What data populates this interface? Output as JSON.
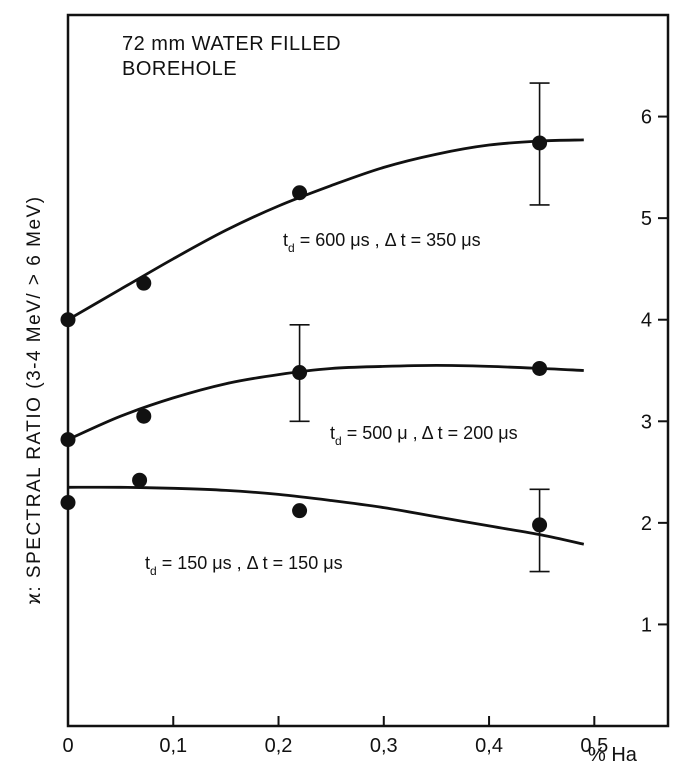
{
  "chart_data": {
    "type": "scatter",
    "xlabel": "% Ha",
    "ylabel": "ϰ: SPECTRAL RATIO (3-4 MeV/ > 6 MeV)",
    "annotation": [
      "72 mm WATER FILLED",
      "BOREHOLE"
    ],
    "xlim": [
      0,
      0.57
    ],
    "ylim": [
      0,
      7.0
    ],
    "x_ticks": [
      0,
      0.1,
      0.2,
      0.3,
      0.4,
      0.5
    ],
    "x_tick_labels": [
      "0",
      "0,1",
      "0,2",
      "0,3",
      "0,4",
      "0,5"
    ],
    "y_ticks": [
      1,
      2,
      3,
      4,
      5,
      6
    ],
    "y_tick_labels": [
      "1",
      "2",
      "3",
      "4",
      "5",
      "6"
    ],
    "grid": false,
    "colors": {
      "ink": "#111111",
      "background": "#ffffff"
    },
    "series": [
      {
        "label_parts": {
          "base": "t",
          "sub": "d",
          "rest": " = 600 μs , Δ t = 350 μs"
        },
        "points": [
          [
            0,
            4.0
          ],
          [
            0.072,
            4.36
          ],
          [
            0.22,
            5.25
          ],
          [
            0.448,
            5.74
          ]
        ],
        "fit_curve": [
          [
            0,
            4.0
          ],
          [
            0.05,
            4.3
          ],
          [
            0.1,
            4.6
          ],
          [
            0.15,
            4.88
          ],
          [
            0.2,
            5.12
          ],
          [
            0.25,
            5.32
          ],
          [
            0.3,
            5.5
          ],
          [
            0.35,
            5.63
          ],
          [
            0.4,
            5.72
          ],
          [
            0.45,
            5.76
          ],
          [
            0.49,
            5.77
          ]
        ],
        "error_bars": [
          {
            "x": 0.448,
            "y": 5.74,
            "low": 5.13,
            "high": 6.33
          }
        ]
      },
      {
        "label_parts": {
          "base": "t",
          "sub": "d",
          "rest": " = 500 μ , Δ t = 200 μs"
        },
        "points": [
          [
            0,
            2.82
          ],
          [
            0.072,
            3.05
          ],
          [
            0.22,
            3.48
          ],
          [
            0.448,
            3.52
          ]
        ],
        "fit_curve": [
          [
            0,
            2.82
          ],
          [
            0.05,
            3.05
          ],
          [
            0.1,
            3.23
          ],
          [
            0.15,
            3.37
          ],
          [
            0.2,
            3.46
          ],
          [
            0.25,
            3.52
          ],
          [
            0.3,
            3.54
          ],
          [
            0.35,
            3.55
          ],
          [
            0.4,
            3.54
          ],
          [
            0.45,
            3.52
          ],
          [
            0.49,
            3.5
          ]
        ],
        "error_bars": [
          {
            "x": 0.22,
            "y": 3.48,
            "low": 3.0,
            "high": 3.95
          }
        ]
      },
      {
        "label_parts": {
          "base": "t",
          "sub": "d",
          "rest": " = 150 μs , Δ t = 150 μs"
        },
        "points": [
          [
            0,
            2.2
          ],
          [
            0.068,
            2.42
          ],
          [
            0.22,
            2.12
          ],
          [
            0.448,
            1.98
          ]
        ],
        "fit_curve": [
          [
            0,
            2.35
          ],
          [
            0.05,
            2.35
          ],
          [
            0.1,
            2.34
          ],
          [
            0.15,
            2.32
          ],
          [
            0.2,
            2.28
          ],
          [
            0.25,
            2.22
          ],
          [
            0.3,
            2.15
          ],
          [
            0.35,
            2.06
          ],
          [
            0.4,
            1.97
          ],
          [
            0.45,
            1.88
          ],
          [
            0.49,
            1.79
          ]
        ],
        "error_bars": [
          {
            "x": 0.448,
            "y": 1.98,
            "low": 1.52,
            "high": 2.33
          }
        ]
      }
    ]
  }
}
